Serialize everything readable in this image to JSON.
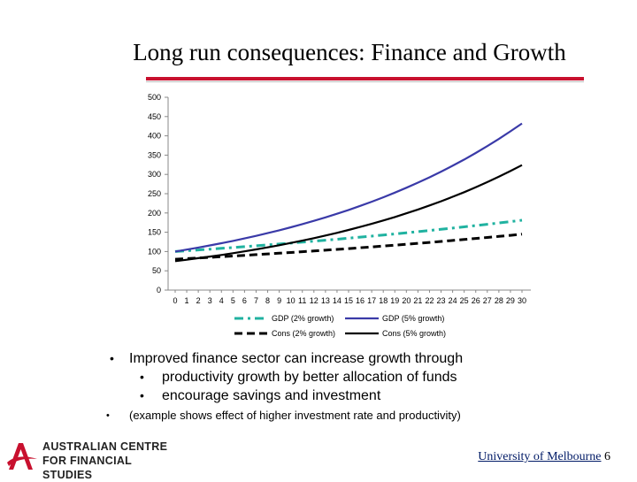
{
  "slide": {
    "title": "Long run consequences: Finance and Growth",
    "bullets": [
      {
        "text": "Improved finance sector can increase growth through",
        "sub": [
          "productivity growth by better allocation of funds",
          "encourage savings and investment"
        ]
      },
      {
        "text": "(example shows effect of higher investment rate and productivity)"
      }
    ],
    "logo": {
      "line1": "AUSTRALIAN CENTRE",
      "line2": "FOR FINANCIAL STUDIES"
    },
    "footer": {
      "institution": "University of Melbourne",
      "page": "6"
    },
    "bullet_char": "•"
  },
  "colors": {
    "accent_red": "#c8102e",
    "gdp2": "#20b2a0",
    "gdp5": "#3a3aa8",
    "cons2": "#000000",
    "cons5": "#000000"
  },
  "chart_data": {
    "type": "line",
    "title": "",
    "xlabel": "",
    "ylabel": "",
    "x": [
      0,
      1,
      2,
      3,
      4,
      5,
      6,
      7,
      8,
      9,
      10,
      11,
      12,
      13,
      14,
      15,
      16,
      17,
      18,
      19,
      20,
      21,
      22,
      23,
      24,
      25,
      26,
      27,
      28,
      29,
      30
    ],
    "xlim": [
      0,
      30
    ],
    "ylim": [
      0,
      500
    ],
    "yticks": [
      0,
      50,
      100,
      150,
      200,
      250,
      300,
      350,
      400,
      450,
      500
    ],
    "grid": false,
    "legend_position": "bottom",
    "series": [
      {
        "name": "GDP (2% growth)",
        "style": "dash-dot",
        "color": "#20b2a0",
        "values": [
          100,
          102,
          104.04,
          106.12,
          108.24,
          110.41,
          112.62,
          114.87,
          117.17,
          119.51,
          121.9,
          124.34,
          126.82,
          129.36,
          131.95,
          134.59,
          137.28,
          140.02,
          142.82,
          145.68,
          148.59,
          151.57,
          154.6,
          157.69,
          160.84,
          164.06,
          167.34,
          170.69,
          174.1,
          177.58,
          181.14
        ]
      },
      {
        "name": "GDP (5% growth)",
        "style": "solid",
        "color": "#3a3aa8",
        "values": [
          100,
          105,
          110.25,
          115.76,
          121.55,
          127.63,
          134.01,
          140.71,
          147.75,
          155.13,
          162.89,
          171.03,
          179.59,
          188.56,
          197.99,
          207.89,
          218.29,
          229.2,
          240.66,
          252.7,
          265.33,
          278.6,
          292.53,
          307.15,
          322.51,
          338.64,
          355.57,
          373.35,
          392.01,
          411.61,
          432.19
        ]
      },
      {
        "name": "Cons (2% growth)",
        "style": "dashed",
        "color": "#000000",
        "values": [
          80,
          81.6,
          83.23,
          84.9,
          86.59,
          88.33,
          90.09,
          91.9,
          93.73,
          95.61,
          97.52,
          99.47,
          101.46,
          103.49,
          105.56,
          107.67,
          109.82,
          112.02,
          114.26,
          116.55,
          118.88,
          121.25,
          123.68,
          126.15,
          128.67,
          131.25,
          133.87,
          136.55,
          139.28,
          142.07,
          144.91
        ]
      },
      {
        "name": "Cons (5% growth)",
        "style": "solid",
        "color": "#000000",
        "values": [
          75,
          78.75,
          82.69,
          86.82,
          91.16,
          95.73,
          100.51,
          105.54,
          110.81,
          116.35,
          122.17,
          128.28,
          134.69,
          141.42,
          148.5,
          155.92,
          163.72,
          171.9,
          180.5,
          189.52,
          199,
          208.95,
          219.4,
          230.37,
          241.89,
          253.98,
          266.68,
          280.01,
          294.01,
          308.71,
          324.15
        ]
      }
    ]
  }
}
